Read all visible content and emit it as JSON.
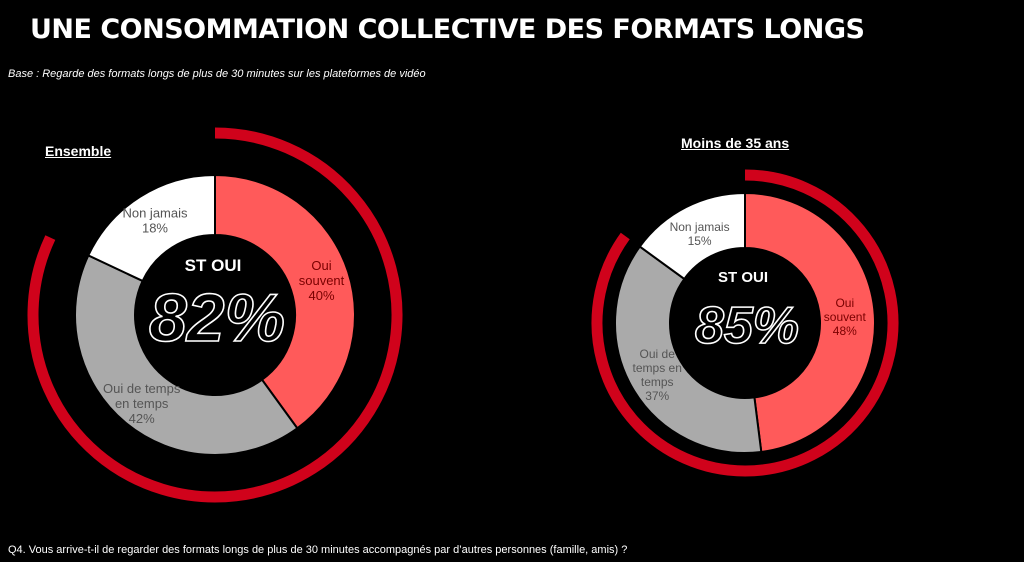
{
  "title": "UNE CONSOMMATION COLLECTIVE DES FORMATS LONGS",
  "base_note": "Base : Regarde des formats longs de plus de 30 minutes sur les plateformes de vidéo",
  "footer_question": "Q4. Vous arrive-t-il de regarder des formats longs de plus de 30 minutes accompagnés par d’autres personnes (famille, amis) ?",
  "colors": {
    "background": "#000000",
    "oui_souvent": "#FF5A5A",
    "oui_de_temps": "#AAAAAA",
    "non_jamais": "#FFFFFF",
    "outer_arc": "#D0021B"
  },
  "chart_data": [
    {
      "type": "pie",
      "variant": "donut",
      "title": "Ensemble",
      "center_label": "ST OUI",
      "center_value": "82%",
      "outer_arc_value": 82,
      "slices": [
        {
          "label": [
            "Oui",
            "souvent"
          ],
          "value": 40,
          "value_label": "40%"
        },
        {
          "label": [
            "Oui de temps",
            "en temps"
          ],
          "value": 42,
          "value_label": "42%"
        },
        {
          "label": [
            "Non jamais"
          ],
          "value": 18,
          "value_label": "18%"
        }
      ]
    },
    {
      "type": "pie",
      "variant": "donut",
      "title": "Moins de 35 ans",
      "center_label": "ST OUI",
      "center_value": "85%",
      "outer_arc_value": 85,
      "slices": [
        {
          "label": [
            "Oui",
            "souvent"
          ],
          "value": 48,
          "value_label": "48%"
        },
        {
          "label": [
            "Oui de",
            "temps en",
            "temps"
          ],
          "value": 37,
          "value_label": "37%"
        },
        {
          "label": [
            "Non jamais"
          ],
          "value": 15,
          "value_label": "15%"
        }
      ]
    }
  ]
}
